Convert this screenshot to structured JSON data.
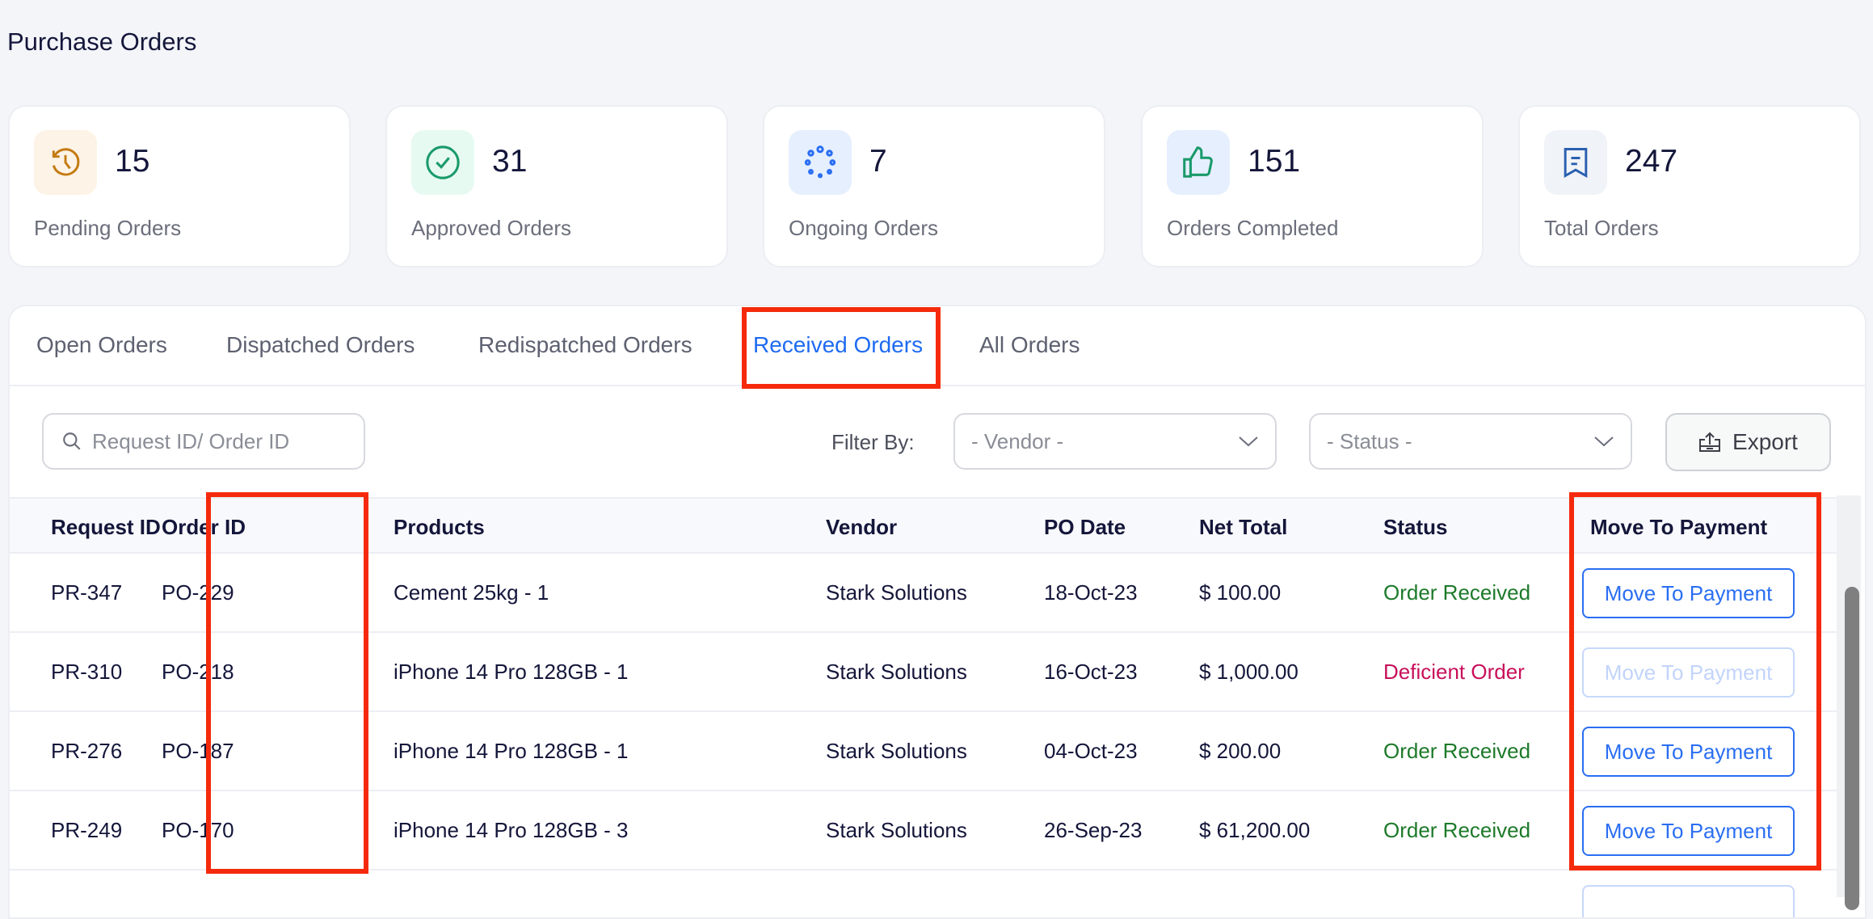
{
  "page_title": "Purchase Orders",
  "stats": [
    {
      "value": "15",
      "label": "Pending Orders",
      "icon": "history-clock-icon",
      "color": "#c47b12",
      "bg": "#fdf3e6"
    },
    {
      "value": "31",
      "label": "Approved Orders",
      "icon": "check-circle-icon",
      "color": "#1a9a6a",
      "bg": "#e6faf1"
    },
    {
      "value": "7",
      "label": "Ongoing Orders",
      "icon": "loading-dots-icon",
      "color": "#2a6ef2",
      "bg": "#e6effe"
    },
    {
      "value": "151",
      "label": "Orders Completed",
      "icon": "thumbs-up-icon",
      "color": "#1a9a6a",
      "bg": "#e6effe"
    },
    {
      "value": "247",
      "label": "Total Orders",
      "icon": "receipt-icon",
      "color": "#2a5fb0",
      "bg": "#f0f3f7"
    }
  ],
  "tabs": [
    {
      "label": "Open Orders"
    },
    {
      "label": "Dispatched Orders"
    },
    {
      "label": "Redispatched Orders"
    },
    {
      "label": "Received Orders",
      "active": true
    },
    {
      "label": "All Orders"
    }
  ],
  "toolbar": {
    "search_placeholder": "Request ID/ Order ID",
    "filter_label": "Filter By:",
    "vendor_select": "- Vendor -",
    "status_select": "- Status -",
    "export_label": "Export"
  },
  "table": {
    "columns": [
      "Request ID",
      "Order ID",
      "Products",
      "Vendor",
      "PO Date",
      "Net Total",
      "Status",
      "Move To Payment"
    ],
    "rows": [
      {
        "request_id": "PR-347",
        "order_id": "PO-229",
        "products": "Cement 25kg - 1",
        "vendor": "Stark Solutions",
        "po_date": "18-Oct-23",
        "net_total": "$ 100.00",
        "status": "Order Received",
        "action": "Move To Payment",
        "enabled": true
      },
      {
        "request_id": "PR-310",
        "order_id": "PO-218",
        "products": "iPhone 14 Pro 128GB - 1",
        "vendor": "Stark Solutions",
        "po_date": "16-Oct-23",
        "net_total": "$ 1,000.00",
        "status": "Deficient Order",
        "action": "Move To Payment",
        "enabled": false
      },
      {
        "request_id": "PR-276",
        "order_id": "PO-187",
        "products": "iPhone 14 Pro 128GB - 1",
        "vendor": "Stark Solutions",
        "po_date": "04-Oct-23",
        "net_total": "$ 200.00",
        "status": "Order Received",
        "action": "Move To Payment",
        "enabled": true
      },
      {
        "request_id": "PR-249",
        "order_id": "PO-170",
        "products": "iPhone 14 Pro 128GB - 3",
        "vendor": "Stark Solutions",
        "po_date": "26-Sep-23",
        "net_total": "$ 61,200.00",
        "status": "Order Received",
        "action": "Move To Payment",
        "enabled": true
      }
    ]
  },
  "colors": {
    "accent": "#1f6bf0",
    "highlight": "#f52a0c",
    "status_ok": "#1d7a2a",
    "status_bad": "#c8105a"
  }
}
